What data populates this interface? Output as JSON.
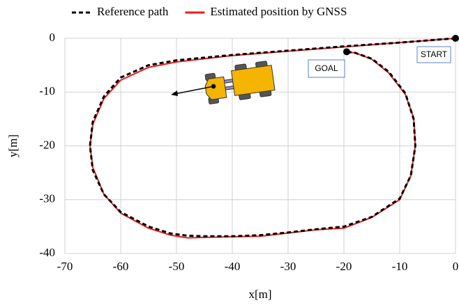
{
  "chart_data": {
    "type": "line",
    "xlabel": "x[m]",
    "ylabel": "y[m]",
    "x": [
      0,
      -5,
      -10,
      -20,
      -30,
      -40,
      -50,
      -55,
      -60,
      -63,
      -65,
      -65.5,
      -65,
      -63,
      -60,
      -55,
      -51,
      -48,
      -45,
      -40,
      -35,
      -30,
      -25,
      -22,
      -20,
      -15,
      -10,
      -8,
      -7.2,
      -7.5,
      -9,
      -12,
      -15,
      -18,
      -19.5
    ],
    "series": [
      {
        "name": "Reference path",
        "color": "#000000",
        "linestyle": "dashed",
        "values": [
          0,
          -0.4,
          -0.8,
          -1.5,
          -2.3,
          -3.1,
          -4.1,
          -5.0,
          -7.3,
          -10.8,
          -15.5,
          -20,
          -24.5,
          -29,
          -32.3,
          -35,
          -36.3,
          -36.7,
          -36.8,
          -36.8,
          -36.6,
          -36.1,
          -35.5,
          -35.2,
          -35.0,
          -33.2,
          -29.8,
          -25.5,
          -20,
          -15,
          -10.2,
          -6.2,
          -3.8,
          -2.7,
          -2.5
        ]
      },
      {
        "name": "Estimated position by GNSS",
        "color": "#ee1c1c",
        "linestyle": "solid",
        "values": [
          0,
          -0.4,
          -0.8,
          -1.6,
          -2.4,
          -3.2,
          -4.4,
          -5.4,
          -7.8,
          -11.2,
          -16,
          -20,
          -24,
          -29,
          -32.5,
          -35.3,
          -36.6,
          -37.1,
          -37.0,
          -36.9,
          -36.8,
          -36.2,
          -35.6,
          -35.4,
          -35.3,
          -33.3,
          -30,
          -25.5,
          -20,
          -14.8,
          -10.4,
          -6.4,
          -3.9,
          -2.7,
          -2.5
        ]
      }
    ],
    "xlim": [
      -70,
      0
    ],
    "ylim": [
      -40,
      0
    ],
    "xticks": [
      -70,
      -60,
      -50,
      -40,
      -30,
      -20,
      -10,
      0
    ],
    "yticks": [
      -40,
      -30,
      -20,
      -10,
      0
    ],
    "grid": true,
    "legend": "top",
    "annotations": [
      "START",
      "GOAL"
    ]
  }
}
